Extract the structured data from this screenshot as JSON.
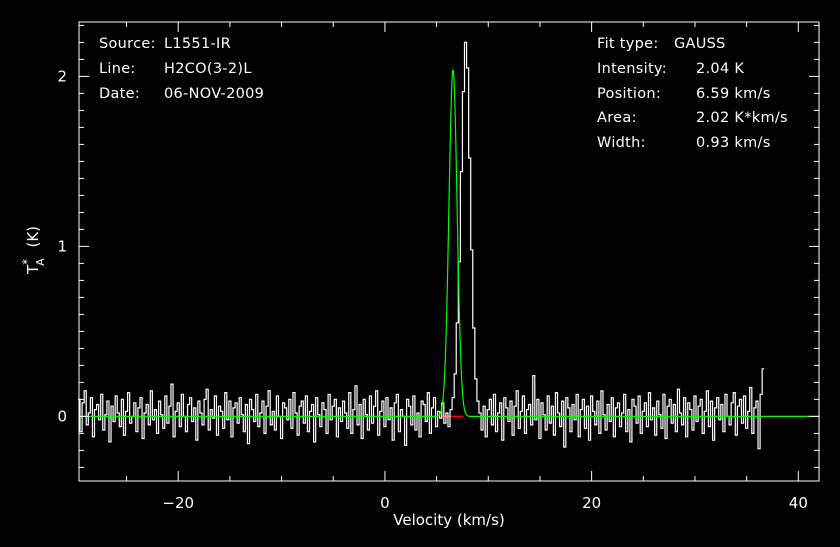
{
  "header": {
    "source_label": "Source:",
    "source_value": "L1551-IR",
    "line_label": "Line:",
    "line_value": "H2CO(3-2)L",
    "date_label": "Date:",
    "date_value": "06-NOV-2009"
  },
  "fit": {
    "type_label": "Fit type:",
    "type_value": "GAUSS",
    "intensity_label": "Intensity:",
    "intensity_value": "2.04 K",
    "position_label": "Position:",
    "position_value": "6.59 km/s",
    "area_label": "Area:",
    "area_value": "2.02 K*km/s",
    "width_label": "Width:",
    "width_value": "0.93 km/s"
  },
  "colors": {
    "background": "#000000",
    "axes": "#ffffff",
    "spectrum": "#ffffff",
    "gaussian_fit": "#00ff00",
    "fit_baseline": "#ff0000"
  },
  "chart_data": {
    "type": "line",
    "xlabel": "Velocity (km/s)",
    "ylabel": "T*A (K)",
    "ylabel_main": "T",
    "ylabel_sup": "*",
    "ylabel_sub": "A",
    "ylabel_unit": "(K)",
    "xlim": [
      -29.6,
      42
    ],
    "ylim": [
      -0.38,
      2.32
    ],
    "xticks": [
      -20,
      0,
      20,
      40
    ],
    "xtick_labels": [
      "−20",
      "0",
      "20",
      "40"
    ],
    "yticks": [
      0,
      1,
      2
    ],
    "ytick_labels": [
      "0",
      "1",
      "2"
    ],
    "grid": false,
    "spectrum": {
      "name": "H2CO(3-2)L",
      "x_start": -29.6,
      "x_step": 0.2,
      "y": [
        0.1,
        -0.09,
        0.08,
        0.15,
        -0.05,
        0.02,
        0.11,
        -0.12,
        0.04,
        0.07,
        -0.02,
        0.13,
        -0.08,
        0.01,
        0.09,
        -0.15,
        0.06,
        -0.03,
        0.12,
        0.02,
        -0.06,
        0.1,
        -0.11,
        0.03,
        0.14,
        -0.04,
        0.0,
        0.08,
        -0.09,
        0.05,
        0.11,
        -0.13,
        0.02,
        0.07,
        -0.05,
        0.15,
        -0.02,
        0.04,
        -0.1,
        0.09,
        0.01,
        -0.07,
        0.12,
        -0.04,
        0.06,
        0.19,
        -0.12,
        0.03,
        0.08,
        -0.06,
        0.13,
        0.0,
        -0.09,
        0.07,
        0.11,
        -0.03,
        0.05,
        -0.14,
        0.09,
        0.02,
        -0.05,
        0.1,
        0.16,
        -0.08,
        0.04,
        -0.01,
        0.12,
        -0.11,
        0.06,
        0.03,
        -0.07,
        0.14,
        -0.02,
        0.09,
        -0.12,
        0.05,
        0.08,
        -0.04,
        0.11,
        0.01,
        -0.09,
        0.07,
        -0.16,
        0.1,
        0.04,
        -0.03,
        0.13,
        -0.06,
        0.02,
        0.09,
        -0.1,
        0.06,
        0.15,
        -0.05,
        0.03,
        -0.08,
        0.12,
        0.0,
        -0.13,
        0.08,
        0.05,
        -0.02,
        0.1,
        -0.07,
        0.14,
        0.02,
        -0.11,
        0.06,
        0.09,
        -0.04,
        0.12,
        -0.09,
        0.03,
        0.07,
        -0.15,
        0.11,
        0.01,
        -0.06,
        0.08,
        0.04,
        -0.1,
        0.13,
        -0.02,
        0.06,
        0.1,
        -0.12,
        0.05,
        -0.03,
        0.09,
        0.02,
        -0.07,
        0.14,
        -0.1,
        0.04,
        0.18,
        -0.05,
        0.07,
        -0.13,
        0.1,
        0.01,
        -0.08,
        0.12,
        -0.04,
        0.06,
        0.15,
        -0.11,
        0.03,
        0.09,
        -0.06,
        0.11,
        -0.02,
        0.05,
        -0.14,
        0.08,
        0.13,
        -0.09,
        0.04,
        0.0,
        -0.17,
        0.1,
        0.06,
        -0.05,
        0.12,
        -0.08,
        0.02,
        -0.12,
        0.09,
        0.07,
        -0.03,
        0.14,
        -0.1,
        0.05,
        0.11,
        -0.06,
        0.03,
        -0.01,
        0.08,
        -0.04,
        0.02,
        -0.06,
        0.04,
        0.11,
        0.25,
        0.55,
        0.91,
        1.44,
        1.91,
        2.2,
        2.05,
        1.52,
        0.98,
        0.52,
        0.22,
        0.09,
        0.02,
        -0.08,
        0.06,
        -0.12,
        0.04,
        0.1,
        -0.05,
        0.13,
        -0.09,
        0.02,
        0.08,
        -0.14,
        0.11,
        0.05,
        -0.03,
        0.09,
        -0.11,
        0.06,
        0.15,
        -0.07,
        0.03,
        0.12,
        -0.1,
        0.04,
        0.07,
        -0.05,
        0.24,
        -0.02,
        0.1,
        -0.13,
        0.08,
        0.01,
        -0.08,
        0.12,
        -0.04,
        0.06,
        -0.11,
        0.14,
        0.02,
        -0.06,
        0.09,
        -0.18,
        0.11,
        0.05,
        -0.09,
        0.07,
        -0.02,
        0.13,
        -0.12,
        0.04,
        0.1,
        -0.07,
        0.06,
        -0.14,
        0.12,
        0.03,
        -0.05,
        0.09,
        -0.1,
        0.15,
        0.01,
        -0.08,
        0.07,
        -0.03,
        0.11,
        -0.12,
        0.05,
        0.08,
        -0.06,
        0.02,
        0.13,
        -0.09,
        0.04,
        -0.15,
        0.1,
        0.06,
        -0.04,
        0.12,
        -0.1,
        0.03,
        0.08,
        -0.06,
        0.14,
        -0.02,
        0.05,
        -0.11,
        0.09,
        0.01,
        -0.07,
        0.13,
        -0.13,
        0.06,
        0.1,
        -0.04,
        0.07,
        -0.09,
        0.16,
        0.02,
        -0.05,
        0.11,
        -0.12,
        0.08,
        0.04,
        -0.08,
        0.12,
        -0.03,
        0.06,
        0.1,
        -0.1,
        0.03,
        0.15,
        -0.06,
        0.09,
        -0.14,
        0.05,
        0.11,
        -0.02,
        0.07,
        -0.09,
        0.13,
        0.0,
        -0.05,
        0.08,
        0.14,
        -0.11,
        0.06,
        0.1,
        -0.04,
        0.12,
        -0.07,
        0.03,
        0.17,
        -0.1,
        0.05,
        0.09,
        -0.19,
        0.13,
        0.28
      ]
    },
    "gaussian_fit": {
      "name": "GAUSS",
      "amplitude": 2.04,
      "center": 6.59,
      "fwhm": 0.93,
      "baseline": 0.0
    }
  }
}
